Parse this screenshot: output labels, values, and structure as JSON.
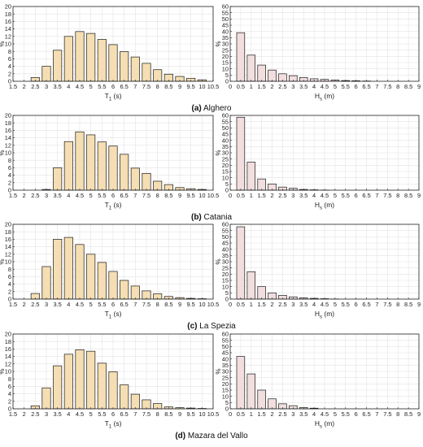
{
  "chart_data": [
    {
      "type": "bar",
      "panel": "a",
      "caption_label": "(a)",
      "caption_text": " Alghero",
      "x": [
        1.5,
        2,
        2.5,
        3,
        3.5,
        4,
        4.5,
        5,
        5.5,
        6,
        6.5,
        7,
        7.5,
        8,
        8.5,
        9,
        9.5,
        10,
        10.5
      ],
      "values": [
        0,
        0,
        1,
        4,
        8.3,
        12,
        13.3,
        12.8,
        11.2,
        9.8,
        7.9,
        6.5,
        4.8,
        3.1,
        1.9,
        1.3,
        0.8,
        0.4,
        0
      ],
      "xlabel": "T",
      "xlabel_sub": "1",
      "xlabel_suffix": " (s)",
      "ylabel": "%",
      "xlim": [
        1.5,
        10.5
      ],
      "ylim": [
        0,
        20
      ],
      "xticks": [
        "1.5",
        "2",
        "2.5",
        "3",
        "3.5",
        "4",
        "4.5",
        "5",
        "5.5",
        "6",
        "6.5",
        "7",
        "7.5",
        "8",
        "8.5",
        "9",
        "9.5",
        "10",
        "10.5"
      ],
      "yticks": [
        "0",
        "2",
        "4",
        "6",
        "8",
        "10",
        "12",
        "14",
        "16",
        "18",
        "20"
      ],
      "color": "#f5deb3",
      "grid": true
    },
    {
      "type": "bar",
      "panel": "a",
      "x": [
        0.5,
        1,
        1.5,
        2,
        2.5,
        3,
        3.5,
        4,
        4.5,
        5,
        5.5,
        6,
        6.5
      ],
      "values": [
        39,
        21,
        13,
        9,
        6,
        4.5,
        3,
        2,
        1.5,
        1,
        0.6,
        0.4,
        0.2
      ],
      "xlabel": "H",
      "xlabel_sub": "s",
      "xlabel_suffix": " (m)",
      "ylabel": "%",
      "xlim": [
        0,
        9
      ],
      "ylim": [
        0,
        60
      ],
      "xticks": [
        "0",
        "0.5",
        "1",
        "1.5",
        "2",
        "2.5",
        "3",
        "3.5",
        "4",
        "4.5",
        "5",
        "5.5",
        "6",
        "6.5",
        "7",
        "7.5",
        "8",
        "8.5",
        "9"
      ],
      "yticks": [
        "0",
        "5",
        "10",
        "15",
        "20",
        "25",
        "30",
        "35",
        "40",
        "45",
        "50",
        "55",
        "60"
      ],
      "color": "#f2dede",
      "grid": true
    },
    {
      "type": "bar",
      "panel": "b",
      "caption_label": "(b)",
      "caption_text": " Catania",
      "x": [
        1.5,
        2,
        2.5,
        3,
        3.5,
        4,
        4.5,
        5,
        5.5,
        6,
        6.5,
        7,
        7.5,
        8,
        8.5,
        9,
        9.5,
        10,
        10.5
      ],
      "values": [
        0,
        0,
        0,
        0.2,
        6,
        13,
        15.6,
        14.8,
        12.9,
        11.8,
        9.6,
        5.9,
        4.5,
        2.4,
        1.5,
        0.7,
        0.4,
        0.2,
        0
      ],
      "xlabel": "T",
      "xlabel_sub": "1",
      "xlabel_suffix": " (s)",
      "ylabel": "%",
      "xlim": [
        1.5,
        10.5
      ],
      "ylim": [
        0,
        20
      ],
      "xticks": [
        "1.5",
        "2",
        "2.5",
        "3",
        "3.5",
        "4",
        "4.5",
        "5",
        "5.5",
        "6",
        "6.5",
        "7",
        "7.5",
        "8",
        "8.5",
        "9",
        "9.5",
        "10",
        "10.5"
      ],
      "yticks": [
        "0",
        "2",
        "4",
        "6",
        "8",
        "10",
        "12",
        "14",
        "16",
        "18",
        "20"
      ],
      "color": "#f5deb3",
      "grid": true
    },
    {
      "type": "bar",
      "panel": "b",
      "x": [
        0.5,
        1,
        1.5,
        2,
        2.5,
        3,
        3.5,
        4,
        4.5
      ],
      "values": [
        58.5,
        22.5,
        9,
        5,
        2.5,
        1.5,
        0.6,
        0.3,
        0.1
      ],
      "xlabel": "H",
      "xlabel_sub": "s",
      "xlabel_suffix": " (m)",
      "ylabel": "%",
      "xlim": [
        0,
        9
      ],
      "ylim": [
        0,
        60
      ],
      "xticks": [
        "0",
        "0.5",
        "1",
        "1.5",
        "2",
        "2.5",
        "3",
        "3.5",
        "4",
        "4.5",
        "5",
        "5.5",
        "6",
        "6.5",
        "7",
        "7.5",
        "8",
        "8.5",
        "9"
      ],
      "yticks": [
        "0",
        "5",
        "10",
        "15",
        "20",
        "25",
        "30",
        "35",
        "40",
        "45",
        "50",
        "55",
        "60"
      ],
      "color": "#f2dede",
      "grid": true
    },
    {
      "type": "bar",
      "panel": "c",
      "caption_label": "(c)",
      "caption_text": " La Spezia",
      "x": [
        1.5,
        2,
        2.5,
        3,
        3.5,
        4,
        4.5,
        5,
        5.5,
        6,
        6.5,
        7,
        7.5,
        8,
        8.5,
        9,
        9.5,
        10,
        10.5
      ],
      "values": [
        0,
        0,
        1.5,
        8.7,
        16,
        16.5,
        14.6,
        12,
        9.8,
        7.4,
        5,
        3.5,
        2.2,
        1.4,
        0.7,
        0.4,
        0.2,
        0.1,
        0
      ],
      "xlabel": "T",
      "xlabel_sub": "1",
      "xlabel_suffix": " (s)",
      "ylabel": "%",
      "xlim": [
        1.5,
        10.5
      ],
      "ylim": [
        0,
        20
      ],
      "xticks": [
        "1.5",
        "2",
        "2.5",
        "3",
        "3.5",
        "4",
        "4.5",
        "5",
        "5.5",
        "6",
        "6.5",
        "7",
        "7.5",
        "8",
        "8.5",
        "9",
        "9.5",
        "10",
        "10.5"
      ],
      "yticks": [
        "0",
        "2",
        "4",
        "6",
        "8",
        "10",
        "12",
        "14",
        "16",
        "18",
        "20"
      ],
      "color": "#f5deb3",
      "grid": true
    },
    {
      "type": "bar",
      "panel": "c",
      "x": [
        0.5,
        1,
        1.5,
        2,
        2.5,
        3,
        3.5,
        4,
        4.5,
        5
      ],
      "values": [
        58,
        22,
        10,
        5,
        3,
        1.8,
        1,
        0.6,
        0.3,
        0.1
      ],
      "xlabel": "H",
      "xlabel_sub": "s",
      "xlabel_suffix": " (m)",
      "ylabel": "%",
      "xlim": [
        0,
        9
      ],
      "ylim": [
        0,
        60
      ],
      "xticks": [
        "0",
        "0.5",
        "1",
        "1.5",
        "2",
        "2.5",
        "3",
        "3.5",
        "4",
        "4.5",
        "5",
        "5.5",
        "6",
        "6.5",
        "7",
        "7.5",
        "8",
        "8.5",
        "9"
      ],
      "yticks": [
        "0",
        "5",
        "10",
        "15",
        "20",
        "25",
        "30",
        "35",
        "40",
        "45",
        "50",
        "55",
        "60"
      ],
      "color": "#f2dede",
      "grid": true
    },
    {
      "type": "bar",
      "panel": "d",
      "caption_label": "(d)",
      "caption_text": " Mazara del Vallo",
      "x": [
        1.5,
        2,
        2.5,
        3,
        3.5,
        4,
        4.5,
        5,
        5.5,
        6,
        6.5,
        7,
        7.5,
        8,
        8.5,
        9,
        9.5,
        10,
        10.5
      ],
      "values": [
        0,
        0,
        0.8,
        5.6,
        11.5,
        14.6,
        15.8,
        15.4,
        12.2,
        9.9,
        6.4,
        3.9,
        2.4,
        1.4,
        0.5,
        0.3,
        0.2,
        0.1,
        0
      ],
      "xlabel": "T",
      "xlabel_sub": "1",
      "xlabel_suffix": " (s)",
      "ylabel": "%",
      "xlim": [
        1.5,
        10.5
      ],
      "ylim": [
        0,
        20
      ],
      "xticks": [
        "1.5",
        "2",
        "2.5",
        "3",
        "3.5",
        "4",
        "4.5",
        "5",
        "5.5",
        "6",
        "6.5",
        "7",
        "7.5",
        "8",
        "8.5",
        "9",
        "9.5",
        "10",
        "10.5"
      ],
      "yticks": [
        "0",
        "2",
        "4",
        "6",
        "8",
        "10",
        "12",
        "14",
        "16",
        "18",
        "20"
      ],
      "color": "#f5deb3",
      "grid": true
    },
    {
      "type": "bar",
      "panel": "d",
      "x": [
        0.5,
        1,
        1.5,
        2,
        2.5,
        3,
        3.5,
        4
      ],
      "values": [
        42,
        28,
        15,
        8,
        4,
        2.5,
        1,
        0.5
      ],
      "xlabel": "H",
      "xlabel_sub": "s",
      "xlabel_suffix": " (m)",
      "ylabel": "%",
      "xlim": [
        0,
        9
      ],
      "ylim": [
        0,
        60
      ],
      "xticks": [
        "0",
        "0.5",
        "1",
        "1.5",
        "2",
        "2.5",
        "3",
        "3.5",
        "4",
        "4.5",
        "5",
        "5.5",
        "6",
        "6.5",
        "7",
        "7.5",
        "8",
        "8.5",
        "9"
      ],
      "yticks": [
        "0",
        "5",
        "10",
        "15",
        "20",
        "25",
        "30",
        "35",
        "40",
        "45",
        "50",
        "55",
        "60"
      ],
      "color": "#f2dede",
      "grid": true
    }
  ]
}
